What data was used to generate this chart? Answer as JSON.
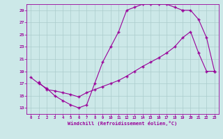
{
  "xlabel": "Windchill (Refroidissement éolien,°C)",
  "background_color": "#cce8e8",
  "grid_color": "#aacccc",
  "line_color": "#990099",
  "ylim": [
    12,
    30
  ],
  "xlim": [
    -0.5,
    23.5
  ],
  "yticks": [
    13,
    15,
    17,
    19,
    21,
    23,
    25,
    27,
    29
  ],
  "xticks": [
    0,
    1,
    2,
    3,
    4,
    5,
    6,
    7,
    8,
    9,
    10,
    11,
    12,
    13,
    14,
    15,
    16,
    17,
    18,
    19,
    20,
    21,
    22,
    23
  ],
  "curve1_x": [
    0,
    1,
    2,
    3,
    4,
    5,
    6,
    7,
    8,
    9,
    10,
    11,
    12,
    13,
    14,
    15,
    16,
    17,
    18,
    19
  ],
  "curve1_y": [
    18.0,
    17.0,
    16.2,
    15.0,
    14.2,
    13.5,
    13.0,
    13.5,
    17.0,
    20.5,
    23.0,
    25.5,
    29.0,
    29.5,
    30.0,
    30.0,
    30.0,
    30.0,
    29.5,
    29.0
  ],
  "curve2_x": [
    19,
    20,
    21,
    22,
    23
  ],
  "curve2_y": [
    29.0,
    29.0,
    27.5,
    24.5,
    19.0
  ],
  "curve3_x": [
    1,
    2,
    3,
    4,
    5,
    6,
    7,
    8,
    9,
    10,
    11,
    12,
    13,
    14,
    15,
    16,
    17,
    18,
    19,
    20,
    21,
    22,
    23
  ],
  "curve3_y": [
    17.2,
    16.0,
    15.8,
    15.5,
    15.2,
    14.8,
    15.5,
    16.0,
    16.5,
    17.0,
    17.5,
    18.2,
    19.0,
    19.8,
    20.5,
    21.2,
    22.0,
    23.0,
    24.5,
    25.5,
    22.0,
    19.0,
    19.0
  ]
}
